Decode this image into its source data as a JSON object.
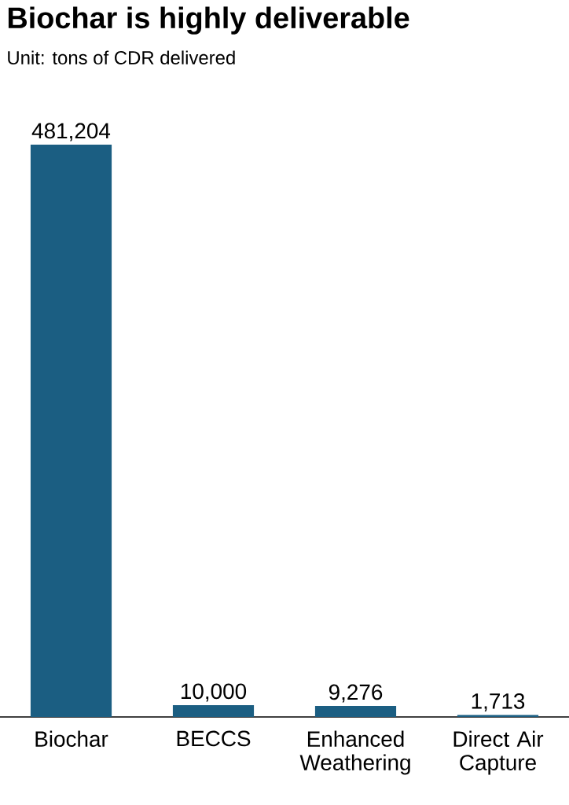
{
  "chart_data": {
    "type": "bar",
    "title": "Biochar is highly deliverable",
    "subtitle": "Unit: tons of CDR delivered",
    "categories": [
      "Biochar",
      "BECCS",
      "Enhanced Weathering",
      "Direct Air Capture"
    ],
    "values": [
      481204,
      10000,
      9276,
      1713
    ],
    "value_labels": [
      "481,204",
      "10,000",
      "9,276",
      "1,713"
    ],
    "color": "#1b5e82"
  }
}
